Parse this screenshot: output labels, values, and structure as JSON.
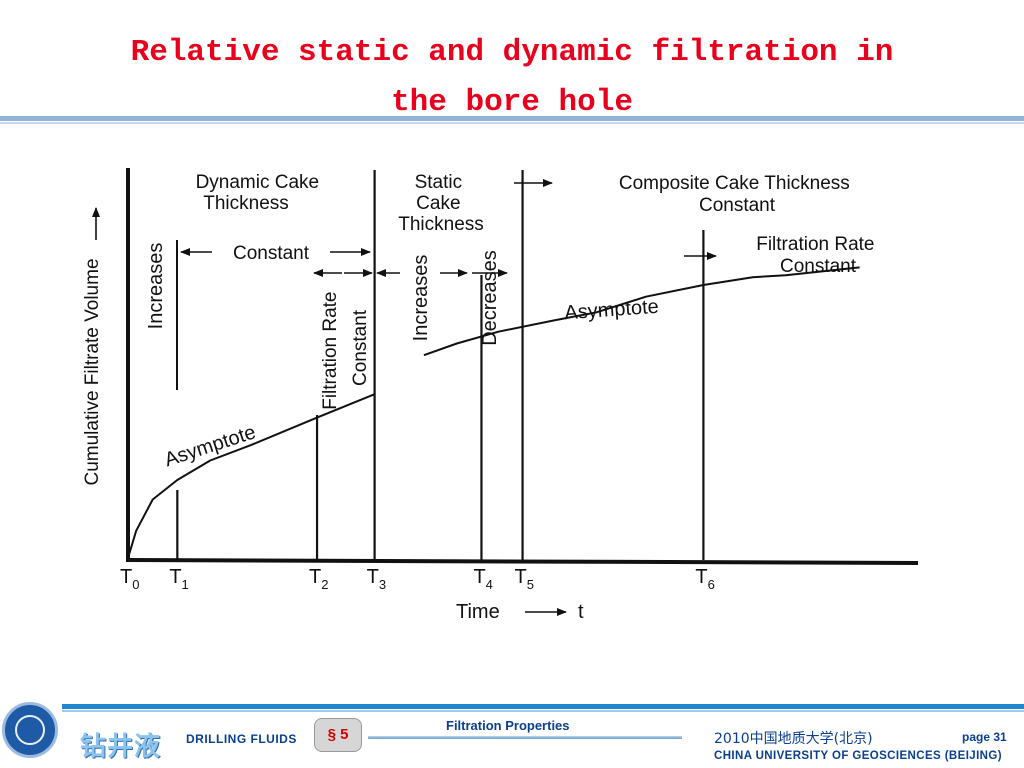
{
  "slide": {
    "title_line1": "Relative static and dynamic filtration in",
    "title_line2": "the bore hole"
  },
  "chart_data": {
    "type": "line",
    "xlabel": "Time",
    "xlabel_suffix": "t",
    "ylabel": "Cumulative Filtrate Volume",
    "xlim": [
      0,
      100
    ],
    "ylim": [
      0,
      100
    ],
    "grid": false,
    "curves": [
      {
        "name": "asymptote-dynamic",
        "x": [
          0,
          1,
          3,
          6,
          10,
          15,
          23,
          30
        ],
        "y": [
          0,
          7,
          15,
          20,
          25,
          29,
          36,
          42
        ]
      },
      {
        "name": "asymptote-static",
        "x": [
          36,
          40,
          45,
          52,
          57,
          63,
          70,
          76,
          80,
          89
        ],
        "y": [
          52,
          55,
          58,
          61,
          63,
          67,
          70,
          72,
          72.5,
          74.5
        ]
      }
    ],
    "markers": [
      {
        "label": "T",
        "sub": "0",
        "x": 0
      },
      {
        "label": "T",
        "sub": "1",
        "x": 6
      },
      {
        "label": "T",
        "sub": "2",
        "x": 23
      },
      {
        "label": "T",
        "sub": "3",
        "x": 30
      },
      {
        "label": "T",
        "sub": "4",
        "x": 43
      },
      {
        "label": "T",
        "sub": "5",
        "x": 48
      },
      {
        "label": "T",
        "sub": "6",
        "x": 70
      }
    ],
    "annotations": {
      "dynamic_cake": [
        "Dynamic Cake",
        "Thickness"
      ],
      "increases_1": "Increases",
      "constant_1": "Constant",
      "filtration_rate_constant_v": [
        "Filtration Rate",
        "Constant"
      ],
      "static_cake": [
        "Static",
        "Cake",
        "Thickness"
      ],
      "increases_2": "Increases",
      "decreases": "Decreases",
      "composite": [
        "Composite Cake Thickness",
        "Constant"
      ],
      "filtration_rate_constant_h": [
        "Filtration Rate",
        "Constant"
      ],
      "asymptote_1": "Asymptote",
      "asymptote_2": "Asymptote"
    }
  },
  "footer": {
    "logo_text": "钻井液",
    "course": "DRILLING FLUIDS",
    "section": "§ 5",
    "topic": "Filtration Properties",
    "university_cn": "2010中国地质大学(北京)",
    "page": "page 31",
    "university_en": "CHINA UNIVERSITY OF GEOSCIENCES (BEIJING)",
    "accent": "#1f86cf",
    "title_color": "#e8001c"
  }
}
